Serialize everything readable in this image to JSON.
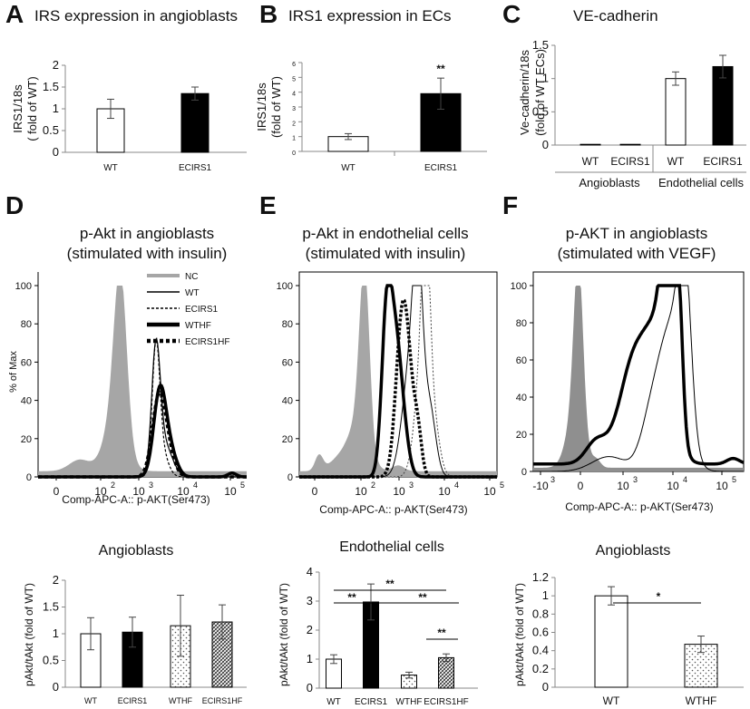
{
  "panels": {
    "A": {
      "letter": "A",
      "title": "IRS expression in angioblasts"
    },
    "B": {
      "letter": "B",
      "title": "IRS1 expression in ECs"
    },
    "C": {
      "letter": "C",
      "title": "VE-cadherin"
    },
    "D": {
      "letter": "D",
      "title_l1": "p-Akt in angioblasts",
      "title_l2": "(stimulated with insulin)"
    },
    "E": {
      "letter": "E",
      "title_l1": "p-Akt in endothelial cells",
      "title_l2": "(stimulated with insulin)"
    },
    "F": {
      "letter": "F",
      "title_l1": "p-AKT in angioblasts",
      "title_l2": "(stimulated with VEGF)"
    }
  },
  "chart_data": [
    {
      "id": "A",
      "type": "bar",
      "title": "IRS expression in angioblasts",
      "ylabel": "IRS1/18s ( fold of WT)",
      "categories": [
        "WT",
        "ECIRS1"
      ],
      "values": [
        1.0,
        1.35
      ],
      "errors": [
        0.22,
        0.15
      ],
      "fills": [
        "#ffffff",
        "#000000"
      ],
      "ylim": [
        0,
        2
      ],
      "yticks": [
        "0",
        "0.5",
        "1",
        "1.5",
        "2"
      ]
    },
    {
      "id": "B",
      "type": "bar",
      "title": "IRS1 expression in ECs",
      "ylabel": "IRS1/18s (fold of WT)",
      "categories": [
        "WT",
        "ECIRS1"
      ],
      "values": [
        1.0,
        3.9
      ],
      "errors": [
        0.2,
        1.05
      ],
      "fills": [
        "#ffffff",
        "#000000"
      ],
      "ylim": [
        0,
        6
      ],
      "yticks": [
        "0",
        "1",
        "2",
        "3",
        "4",
        "5",
        "6"
      ],
      "annotations": [
        "**"
      ]
    },
    {
      "id": "C",
      "type": "bar",
      "title": "VE-cadherin",
      "ylabel": "Ve-cadherin/18s (fold of WT ECs)",
      "categories": [
        "WT",
        "ECIRS1",
        "WT",
        "ECIRS1"
      ],
      "groups": [
        "Angioblasts",
        "Endothelial cells"
      ],
      "values": [
        0.0,
        0.0,
        1.0,
        1.18
      ],
      "errors": [
        0.0,
        0.0,
        0.1,
        0.17
      ],
      "fills": [
        "#ffffff",
        "#000000",
        "#ffffff",
        "#000000"
      ],
      "ylim": [
        0,
        1.5
      ],
      "yticks": [
        "0",
        "0.5",
        "1",
        "1.5"
      ]
    },
    {
      "id": "D-hist",
      "type": "line",
      "title": "p-Akt in angioblasts (stimulated with insulin)",
      "xlabel": "Comp-APC-A:: p-AKT(Ser473)",
      "ylabel": "% of Max",
      "ylim": [
        0,
        100
      ],
      "yticks": [
        "0",
        "20",
        "40",
        "60",
        "80",
        "100"
      ],
      "xticks": [
        "0",
        "10",
        "10",
        "10",
        "10"
      ],
      "xexp": [
        "",
        "2",
        "3",
        "4",
        "5"
      ],
      "legend": [
        "NC",
        "WT",
        "ECIRS1",
        "WTHF",
        "ECIRS1HF"
      ]
    },
    {
      "id": "E-hist",
      "type": "line",
      "title": "p-Akt in endothelial cells (stimulated with insulin)",
      "xlabel": "Comp-APC-A:: p-AKT(Ser473)",
      "ylim": [
        0,
        100
      ],
      "yticks": [
        "0",
        "20",
        "40",
        "60",
        "80",
        "100"
      ],
      "xticks": [
        "0",
        "10",
        "10",
        "10",
        "10"
      ],
      "xexp": [
        "",
        "2",
        "3",
        "4",
        "5"
      ]
    },
    {
      "id": "F-hist",
      "type": "line",
      "title": "p-AKT in angioblasts (stimulated with VEGF)",
      "xlabel": "Comp-APC-A:: p-AKT(Ser473)",
      "ylim": [
        0,
        100
      ],
      "yticks": [
        "0",
        "20",
        "40",
        "60",
        "80",
        "100"
      ],
      "xticks": [
        "-10",
        "0",
        "10",
        "10",
        "10"
      ],
      "xexp": [
        "3",
        "",
        "3",
        "4",
        "5"
      ]
    },
    {
      "id": "D-bar",
      "type": "bar",
      "title": "Angioblasts",
      "ylabel": "pAkt/tAkt (fold of WT)",
      "categories": [
        "WT",
        "ECIRS1",
        "WTHF",
        "ECIRS1HF"
      ],
      "values": [
        1.0,
        1.03,
        1.15,
        1.22
      ],
      "errors": [
        0.3,
        0.28,
        0.57,
        0.32
      ],
      "patterns": [
        "white",
        "black",
        "dots",
        "hatch"
      ],
      "ylim": [
        0,
        2
      ],
      "yticks": [
        "0",
        "0.5",
        "1",
        "1.5",
        "2"
      ]
    },
    {
      "id": "E-bar",
      "type": "bar",
      "title": "Endothelial cells",
      "ylabel": "pAkt/tAkt (fold of WT)",
      "categories": [
        "WT",
        "ECIRS1",
        "WTHF",
        "ECIRS1HF"
      ],
      "values": [
        1.0,
        2.97,
        0.45,
        1.05
      ],
      "errors": [
        0.15,
        0.62,
        0.1,
        0.13
      ],
      "patterns": [
        "white",
        "black",
        "dots",
        "hatch"
      ],
      "ylim": [
        0,
        4
      ],
      "yticks": [
        "0",
        "1",
        "2",
        "3",
        "4"
      ],
      "annotations": [
        "**",
        "**",
        "**",
        "**"
      ]
    },
    {
      "id": "F-bar",
      "type": "bar",
      "title": "Angioblasts",
      "ylabel": "pAkt/tAkt (fold of WT)",
      "categories": [
        "WT",
        "WTHF"
      ],
      "values": [
        1.0,
        0.47
      ],
      "errors": [
        0.1,
        0.09
      ],
      "patterns": [
        "white",
        "dots"
      ],
      "ylim": [
        0,
        1.2
      ],
      "yticks": [
        "0",
        "0.2",
        "0.4",
        "0.6",
        "0.8",
        "1",
        "1.2"
      ],
      "annotations": [
        "*"
      ]
    }
  ]
}
